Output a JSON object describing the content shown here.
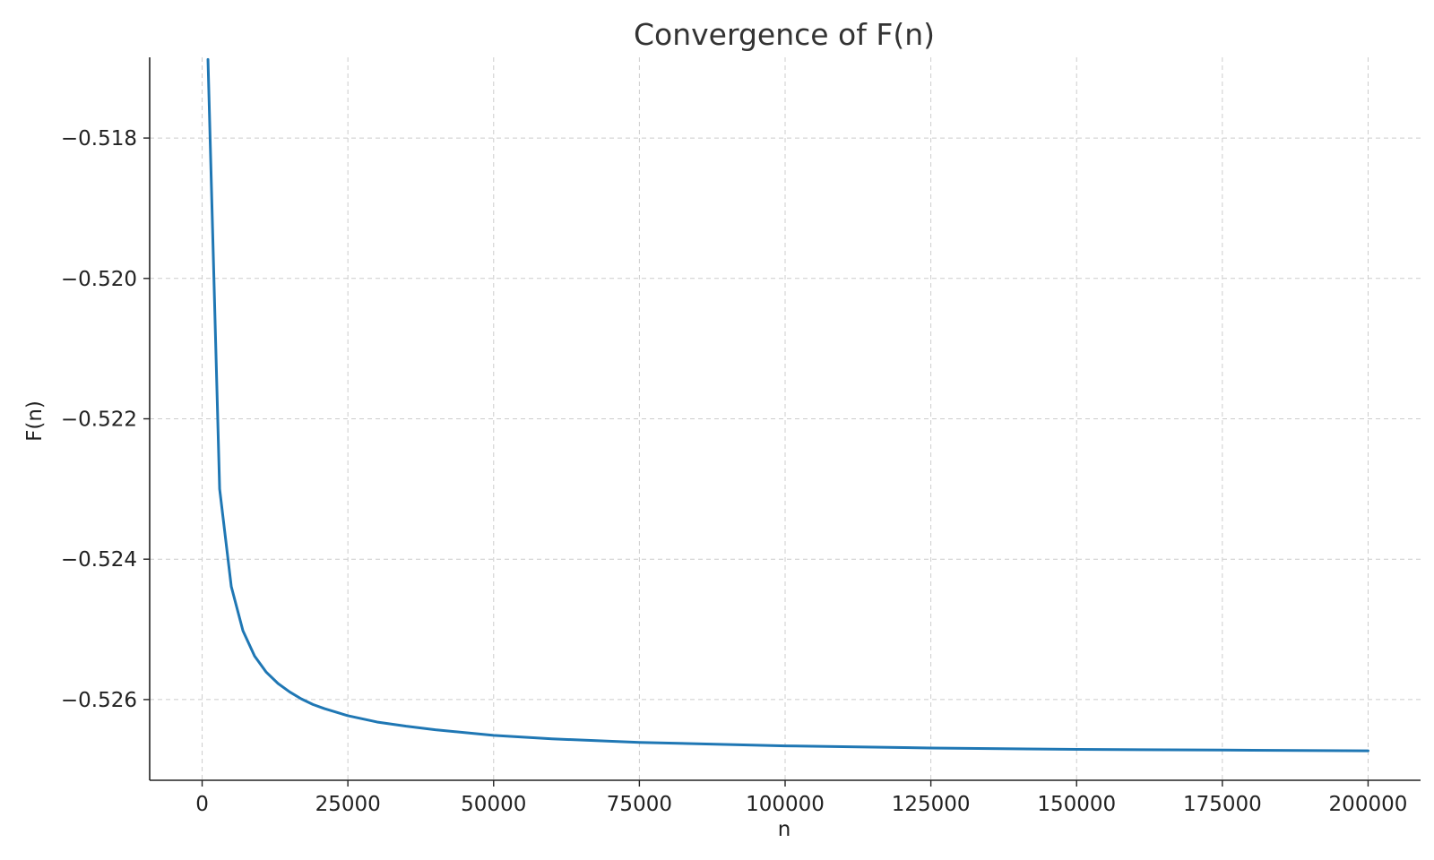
{
  "chart_data": {
    "type": "line",
    "title": "Convergence of F(n)",
    "xlabel": "n",
    "ylabel": "F(n)",
    "xlim": [
      -9000,
      209000
    ],
    "ylim": [
      -0.52715,
      -0.51685
    ],
    "x_ticks": [
      0,
      25000,
      50000,
      75000,
      100000,
      125000,
      150000,
      175000,
      200000
    ],
    "x_tick_labels": [
      "0",
      "25000",
      "50000",
      "75000",
      "100000",
      "125000",
      "150000",
      "175000",
      "200000"
    ],
    "y_ticks": [
      -0.518,
      -0.52,
      -0.522,
      -0.524,
      -0.526
    ],
    "y_tick_labels": [
      "−0.518",
      "−0.520",
      "−0.522",
      "−0.524",
      "−0.526"
    ],
    "grid": true,
    "color": "#1f77b4",
    "series": [
      {
        "x": [
          1000,
          3000,
          5000,
          7000,
          9000,
          11000,
          13000,
          15000,
          17000,
          19000,
          21000,
          25000,
          30000,
          35000,
          40000,
          50000,
          60000,
          75000,
          100000,
          125000,
          150000,
          175000,
          200000
        ],
        "y": [
          -0.51688,
          -0.523,
          -0.52439,
          -0.52502,
          -0.52538,
          -0.52561,
          -0.52577,
          -0.52589,
          -0.52599,
          -0.52607,
          -0.52613,
          -0.52623,
          -0.52632,
          -0.52638,
          -0.52643,
          -0.52651,
          -0.52656,
          -0.52661,
          -0.52666,
          -0.52669,
          -0.52671,
          -0.52672,
          -0.52673
        ]
      }
    ]
  }
}
